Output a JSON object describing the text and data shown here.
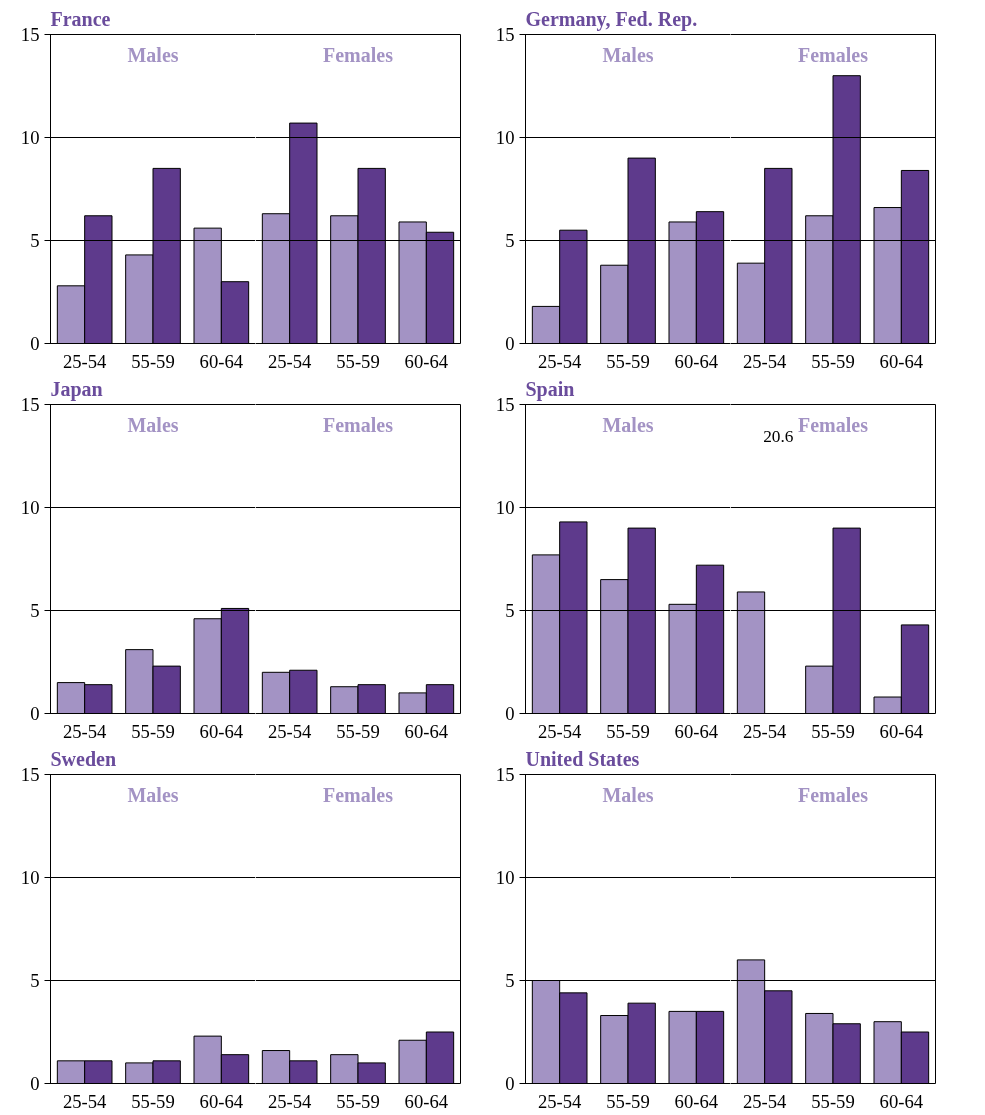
{
  "chart_data": [
    {
      "type": "bar",
      "title": "France",
      "categories": [
        "25-54",
        "55-59",
        "60-64",
        "25-54",
        "55-59",
        "60-64"
      ],
      "ylim": [
        0,
        15
      ],
      "yticks": [
        0,
        5,
        10,
        15
      ],
      "grid": "y",
      "annotations": [
        "Males",
        "Females"
      ],
      "series": [
        {
          "color": "#a393c4",
          "values": [
            2.8,
            4.3,
            5.6,
            6.3,
            6.2,
            5.9
          ]
        },
        {
          "color": "#5e3a8c",
          "values": [
            6.2,
            8.5,
            3.0,
            10.7,
            8.5,
            5.4
          ]
        }
      ]
    },
    {
      "type": "bar",
      "title": "Germany, Fed. Rep.",
      "categories": [
        "25-54",
        "55-59",
        "60-64",
        "25-54",
        "55-59",
        "60-64"
      ],
      "ylim": [
        0,
        15
      ],
      "yticks": [
        0,
        5,
        10,
        15
      ],
      "grid": "y",
      "annotations": [
        "Males",
        "Females"
      ],
      "series": [
        {
          "color": "#a393c4",
          "values": [
            1.8,
            3.8,
            5.9,
            3.9,
            6.2,
            6.6
          ]
        },
        {
          "color": "#5e3a8c",
          "values": [
            5.5,
            9.0,
            6.4,
            8.5,
            13.0,
            8.4
          ]
        }
      ]
    },
    {
      "type": "bar",
      "title": "Japan",
      "categories": [
        "25-54",
        "55-59",
        "60-64",
        "25-54",
        "55-59",
        "60-64"
      ],
      "ylim": [
        0,
        15
      ],
      "yticks": [
        0,
        5,
        10,
        15
      ],
      "grid": "y",
      "annotations": [
        "Males",
        "Females"
      ],
      "series": [
        {
          "color": "#a393c4",
          "values": [
            1.5,
            3.1,
            4.6,
            2.0,
            1.3,
            1.0
          ]
        },
        {
          "color": "#5e3a8c",
          "values": [
            1.4,
            2.3,
            5.1,
            2.1,
            1.4,
            1.4
          ]
        }
      ]
    },
    {
      "type": "bar",
      "title": "Spain",
      "categories": [
        "25-54",
        "55-59",
        "60-64",
        "25-54",
        "55-59",
        "60-64"
      ],
      "ylim": [
        0,
        15
      ],
      "yticks": [
        0,
        5,
        10,
        15
      ],
      "grid": "y",
      "annotations": [
        "Males",
        "Females"
      ],
      "series": [
        {
          "color": "#a393c4",
          "values": [
            7.7,
            6.5,
            5.3,
            5.9,
            2.3,
            0.8
          ]
        },
        {
          "color": "#5e3a8c",
          "values": [
            9.3,
            9.0,
            7.2,
            null,
            9.0,
            4.3
          ],
          "value_labels": [
            null,
            null,
            null,
            "20.6",
            null,
            null
          ]
        }
      ]
    },
    {
      "type": "bar",
      "title": "Sweden",
      "categories": [
        "25-54",
        "55-59",
        "60-64",
        "25-54",
        "55-59",
        "60-64"
      ],
      "ylim": [
        0,
        15
      ],
      "yticks": [
        0,
        5,
        10,
        15
      ],
      "grid": "y",
      "annotations": [
        "Males",
        "Females"
      ],
      "series": [
        {
          "color": "#a393c4",
          "values": [
            1.1,
            1.0,
            2.3,
            1.6,
            1.4,
            2.1
          ]
        },
        {
          "color": "#5e3a8c",
          "values": [
            1.1,
            1.1,
            1.4,
            1.1,
            1.0,
            2.5
          ]
        }
      ]
    },
    {
      "type": "bar",
      "title": "United States",
      "categories": [
        "25-54",
        "55-59",
        "60-64",
        "25-54",
        "55-59",
        "60-64"
      ],
      "ylim": [
        0,
        15
      ],
      "yticks": [
        0,
        5,
        10,
        15
      ],
      "grid": "y",
      "annotations": [
        "Males",
        "Females"
      ],
      "series": [
        {
          "color": "#a393c4",
          "values": [
            5.0,
            3.3,
            3.5,
            6.0,
            3.4,
            3.0
          ]
        },
        {
          "color": "#5e3a8c",
          "values": [
            4.4,
            3.9,
            3.5,
            4.5,
            2.9,
            2.5
          ]
        }
      ]
    }
  ]
}
